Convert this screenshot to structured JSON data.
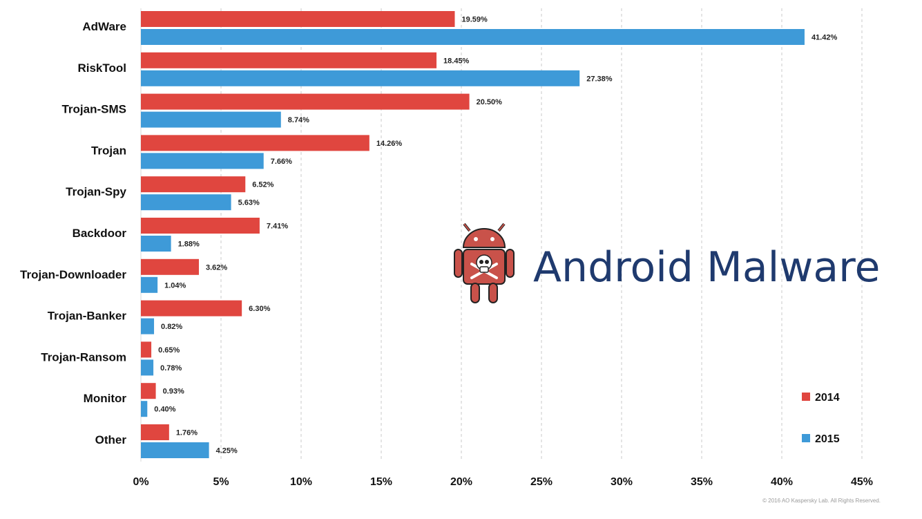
{
  "title": "Android Malware",
  "copyright": "© 2016 AO Kaspersky Lab. All Rights Reserved.",
  "colors": {
    "2014": "#e0463f",
    "2015": "#3e9ad8",
    "logo": "#c9524a"
  },
  "logo_icon": "android-skull-icon",
  "chart_data": {
    "type": "bar",
    "orientation": "horizontal",
    "categories": [
      "AdWare",
      "RiskTool",
      "Trojan-SMS",
      "Trojan",
      "Trojan-Spy",
      "Backdoor",
      "Trojan-Downloader",
      "Trojan-Banker",
      "Trojan-Ransom",
      "Monitor",
      "Other"
    ],
    "series": [
      {
        "name": "2014",
        "color": "#e0463f",
        "values": [
          19.59,
          18.45,
          20.5,
          14.26,
          6.52,
          7.41,
          3.62,
          6.3,
          0.65,
          0.93,
          1.76
        ],
        "labels": [
          "19.59%",
          "18.45%",
          "20.50%",
          "14.26%",
          "6.52%",
          "7.41%",
          "3.62%",
          "6.30%",
          "0.65%",
          "0.93%",
          "1.76%"
        ]
      },
      {
        "name": "2015",
        "color": "#3e9ad8",
        "values": [
          41.42,
          27.38,
          8.74,
          7.66,
          5.63,
          1.88,
          1.04,
          0.82,
          0.78,
          0.4,
          4.25
        ],
        "labels": [
          "41.42%",
          "27.38%",
          "8.74%",
          "7.66%",
          "5.63%",
          "1.88%",
          "1.04%",
          "0.82%",
          "0.78%",
          "0.40%",
          "4.25%"
        ]
      }
    ],
    "xlim": [
      0,
      45
    ],
    "xticks": [
      "0%",
      "5%",
      "10%",
      "15%",
      "20%",
      "25%",
      "30%",
      "35%",
      "40%",
      "45%"
    ],
    "grid": true,
    "legend": "bottom-right"
  }
}
